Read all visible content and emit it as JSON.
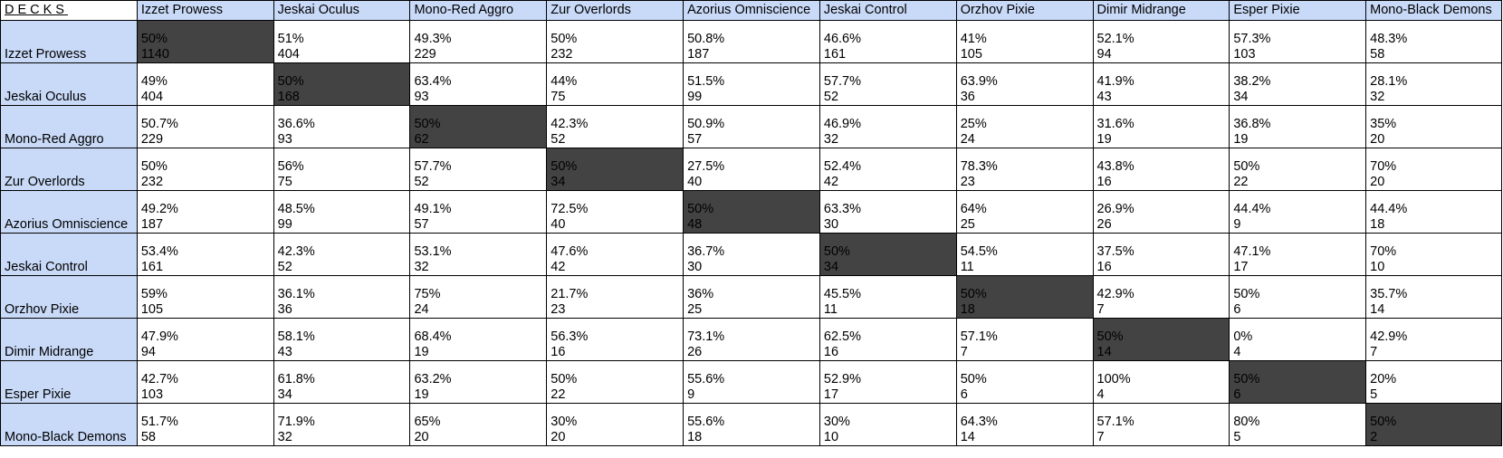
{
  "corner_label": "DECKS",
  "colors": {
    "header_bg": "#c9daf8",
    "mirror_bg": "#434343",
    "grid": "#000000"
  },
  "decks": [
    "Izzet Prowess",
    "Jeskai Oculus",
    "Mono-Red Aggro",
    "Zur Overlords",
    "Azorius Omniscience",
    "Jeskai Control",
    "Orzhov Pixie",
    "Dimir Midrange",
    "Esper Pixie",
    "Mono-Black Demons"
  ],
  "rows": [
    {
      "deck": "Izzet Prowess",
      "cells": [
        {
          "pct": "50%",
          "games": "1140"
        },
        {
          "pct": "51%",
          "games": "404"
        },
        {
          "pct": "49.3%",
          "games": "229"
        },
        {
          "pct": "50%",
          "games": "232"
        },
        {
          "pct": "50.8%",
          "games": "187"
        },
        {
          "pct": "46.6%",
          "games": "161"
        },
        {
          "pct": "41%",
          "games": "105"
        },
        {
          "pct": "52.1%",
          "games": "94"
        },
        {
          "pct": "57.3%",
          "games": "103"
        },
        {
          "pct": "48.3%",
          "games": "58"
        }
      ]
    },
    {
      "deck": "Jeskai Oculus",
      "cells": [
        {
          "pct": "49%",
          "games": "404"
        },
        {
          "pct": "50%",
          "games": "168"
        },
        {
          "pct": "63.4%",
          "games": "93"
        },
        {
          "pct": "44%",
          "games": "75"
        },
        {
          "pct": "51.5%",
          "games": "99"
        },
        {
          "pct": "57.7%",
          "games": "52"
        },
        {
          "pct": "63.9%",
          "games": "36"
        },
        {
          "pct": "41.9%",
          "games": "43"
        },
        {
          "pct": "38.2%",
          "games": "34"
        },
        {
          "pct": "28.1%",
          "games": "32"
        }
      ]
    },
    {
      "deck": "Mono-Red Aggro",
      "cells": [
        {
          "pct": "50.7%",
          "games": "229"
        },
        {
          "pct": "36.6%",
          "games": "93"
        },
        {
          "pct": "50%",
          "games": "62"
        },
        {
          "pct": "42.3%",
          "games": "52"
        },
        {
          "pct": "50.9%",
          "games": "57"
        },
        {
          "pct": "46.9%",
          "games": "32"
        },
        {
          "pct": "25%",
          "games": "24"
        },
        {
          "pct": "31.6%",
          "games": "19"
        },
        {
          "pct": "36.8%",
          "games": "19"
        },
        {
          "pct": "35%",
          "games": "20"
        }
      ]
    },
    {
      "deck": "Zur Overlords",
      "cells": [
        {
          "pct": "50%",
          "games": "232"
        },
        {
          "pct": "56%",
          "games": "75"
        },
        {
          "pct": "57.7%",
          "games": "52"
        },
        {
          "pct": "50%",
          "games": "34"
        },
        {
          "pct": "27.5%",
          "games": "40"
        },
        {
          "pct": "52.4%",
          "games": "42"
        },
        {
          "pct": "78.3%",
          "games": "23"
        },
        {
          "pct": "43.8%",
          "games": "16"
        },
        {
          "pct": "50%",
          "games": "22"
        },
        {
          "pct": "70%",
          "games": "20"
        }
      ]
    },
    {
      "deck": "Azorius Omniscience",
      "cells": [
        {
          "pct": "49.2%",
          "games": "187"
        },
        {
          "pct": "48.5%",
          "games": "99"
        },
        {
          "pct": "49.1%",
          "games": "57"
        },
        {
          "pct": "72.5%",
          "games": "40"
        },
        {
          "pct": "50%",
          "games": "48"
        },
        {
          "pct": "63.3%",
          "games": "30"
        },
        {
          "pct": "64%",
          "games": "25"
        },
        {
          "pct": "26.9%",
          "games": "26"
        },
        {
          "pct": "44.4%",
          "games": "9"
        },
        {
          "pct": "44.4%",
          "games": "18"
        }
      ]
    },
    {
      "deck": "Jeskai Control",
      "cells": [
        {
          "pct": "53.4%",
          "games": "161"
        },
        {
          "pct": "42.3%",
          "games": "52"
        },
        {
          "pct": "53.1%",
          "games": "32"
        },
        {
          "pct": "47.6%",
          "games": "42"
        },
        {
          "pct": "36.7%",
          "games": "30"
        },
        {
          "pct": "50%",
          "games": "34"
        },
        {
          "pct": "54.5%",
          "games": "11"
        },
        {
          "pct": "37.5%",
          "games": "16"
        },
        {
          "pct": "47.1%",
          "games": "17"
        },
        {
          "pct": "70%",
          "games": "10"
        }
      ]
    },
    {
      "deck": "Orzhov Pixie",
      "cells": [
        {
          "pct": "59%",
          "games": "105"
        },
        {
          "pct": "36.1%",
          "games": "36"
        },
        {
          "pct": "75%",
          "games": "24"
        },
        {
          "pct": "21.7%",
          "games": "23"
        },
        {
          "pct": "36%",
          "games": "25"
        },
        {
          "pct": "45.5%",
          "games": "11"
        },
        {
          "pct": "50%",
          "games": "18"
        },
        {
          "pct": "42.9%",
          "games": "7"
        },
        {
          "pct": "50%",
          "games": "6"
        },
        {
          "pct": "35.7%",
          "games": "14"
        }
      ]
    },
    {
      "deck": "Dimir Midrange",
      "cells": [
        {
          "pct": "47.9%",
          "games": "94"
        },
        {
          "pct": "58.1%",
          "games": "43"
        },
        {
          "pct": "68.4%",
          "games": "19"
        },
        {
          "pct": "56.3%",
          "games": "16"
        },
        {
          "pct": "73.1%",
          "games": "26"
        },
        {
          "pct": "62.5%",
          "games": "16"
        },
        {
          "pct": "57.1%",
          "games": "7"
        },
        {
          "pct": "50%",
          "games": "14"
        },
        {
          "pct": "0%",
          "games": "4"
        },
        {
          "pct": "42.9%",
          "games": "7"
        }
      ]
    },
    {
      "deck": "Esper Pixie",
      "cells": [
        {
          "pct": "42.7%",
          "games": "103"
        },
        {
          "pct": "61.8%",
          "games": "34"
        },
        {
          "pct": "63.2%",
          "games": "19"
        },
        {
          "pct": "50%",
          "games": "22"
        },
        {
          "pct": "55.6%",
          "games": "9"
        },
        {
          "pct": "52.9%",
          "games": "17"
        },
        {
          "pct": "50%",
          "games": "6"
        },
        {
          "pct": "100%",
          "games": "4"
        },
        {
          "pct": "50%",
          "games": "6"
        },
        {
          "pct": "20%",
          "games": "5"
        }
      ]
    },
    {
      "deck": "Mono-Black Demons",
      "cells": [
        {
          "pct": "51.7%",
          "games": "58"
        },
        {
          "pct": "71.9%",
          "games": "32"
        },
        {
          "pct": "65%",
          "games": "20"
        },
        {
          "pct": "30%",
          "games": "20"
        },
        {
          "pct": "55.6%",
          "games": "18"
        },
        {
          "pct": "30%",
          "games": "10"
        },
        {
          "pct": "64.3%",
          "games": "14"
        },
        {
          "pct": "57.1%",
          "games": "7"
        },
        {
          "pct": "80%",
          "games": "5"
        },
        {
          "pct": "50%",
          "games": "2"
        }
      ]
    }
  ]
}
